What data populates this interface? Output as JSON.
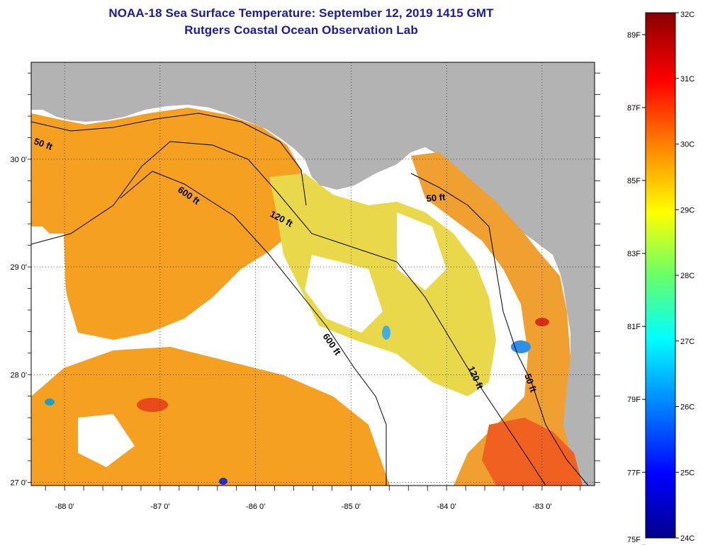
{
  "title": {
    "line1": "NOAA-18 Sea Surface Temperature:  September 12, 2019 1415 GMT",
    "line2": "Rutgers Coastal Ocean Observation Lab"
  },
  "colors": {
    "land": "#b3b3b3",
    "cloud": "#ffffff",
    "frame": "#000000",
    "title": "#1a1aa6"
  },
  "map": {
    "lon_range": [
      -88.35,
      -82.45
    ],
    "lat_range": [
      26.97,
      30.9
    ],
    "lon_ticks": [
      {
        "value": -88,
        "label": "-88 0'"
      },
      {
        "value": -87,
        "label": "-87 0'"
      },
      {
        "value": -86,
        "label": "-86 0'"
      },
      {
        "value": -85,
        "label": "-85 0'"
      },
      {
        "value": -84,
        "label": "-84 0'"
      },
      {
        "value": -83,
        "label": "-83 0'"
      }
    ],
    "lat_ticks": [
      {
        "value": 27,
        "label": "27 0'"
      },
      {
        "value": 28,
        "label": "28 0'"
      },
      {
        "value": 29,
        "label": "29 0'"
      },
      {
        "value": 30,
        "label": "30 0'"
      }
    ],
    "contour_labels": [
      "50 ft",
      "600 ft",
      "120 ft",
      "50 ft",
      "600 ft",
      "120 ft",
      "50 ft"
    ]
  },
  "colorbar": {
    "celsius": [
      {
        "value": 32,
        "label": "32C"
      },
      {
        "value": 31,
        "label": "31C"
      },
      {
        "value": 30,
        "label": "30C"
      },
      {
        "value": 29,
        "label": "29C"
      },
      {
        "value": 28,
        "label": "28C"
      },
      {
        "value": 27,
        "label": "27C"
      },
      {
        "value": 26,
        "label": "26C"
      },
      {
        "value": 25,
        "label": "25C"
      },
      {
        "value": 24,
        "label": "24C"
      }
    ],
    "fahrenheit": [
      {
        "value": 89,
        "label": "89F"
      },
      {
        "value": 87,
        "label": "87F"
      },
      {
        "value": 85,
        "label": "85F"
      },
      {
        "value": 83,
        "label": "83F"
      },
      {
        "value": 81,
        "label": "81F"
      },
      {
        "value": 79,
        "label": "79F"
      },
      {
        "value": 77,
        "label": "77F"
      },
      {
        "value": 75,
        "label": "75F"
      }
    ],
    "stops": [
      "#8b0000",
      "#ff0000",
      "#ff8000",
      "#ffff00",
      "#00e0a0",
      "#00ffff",
      "#0080ff",
      "#0000ff",
      "#00008b"
    ]
  }
}
